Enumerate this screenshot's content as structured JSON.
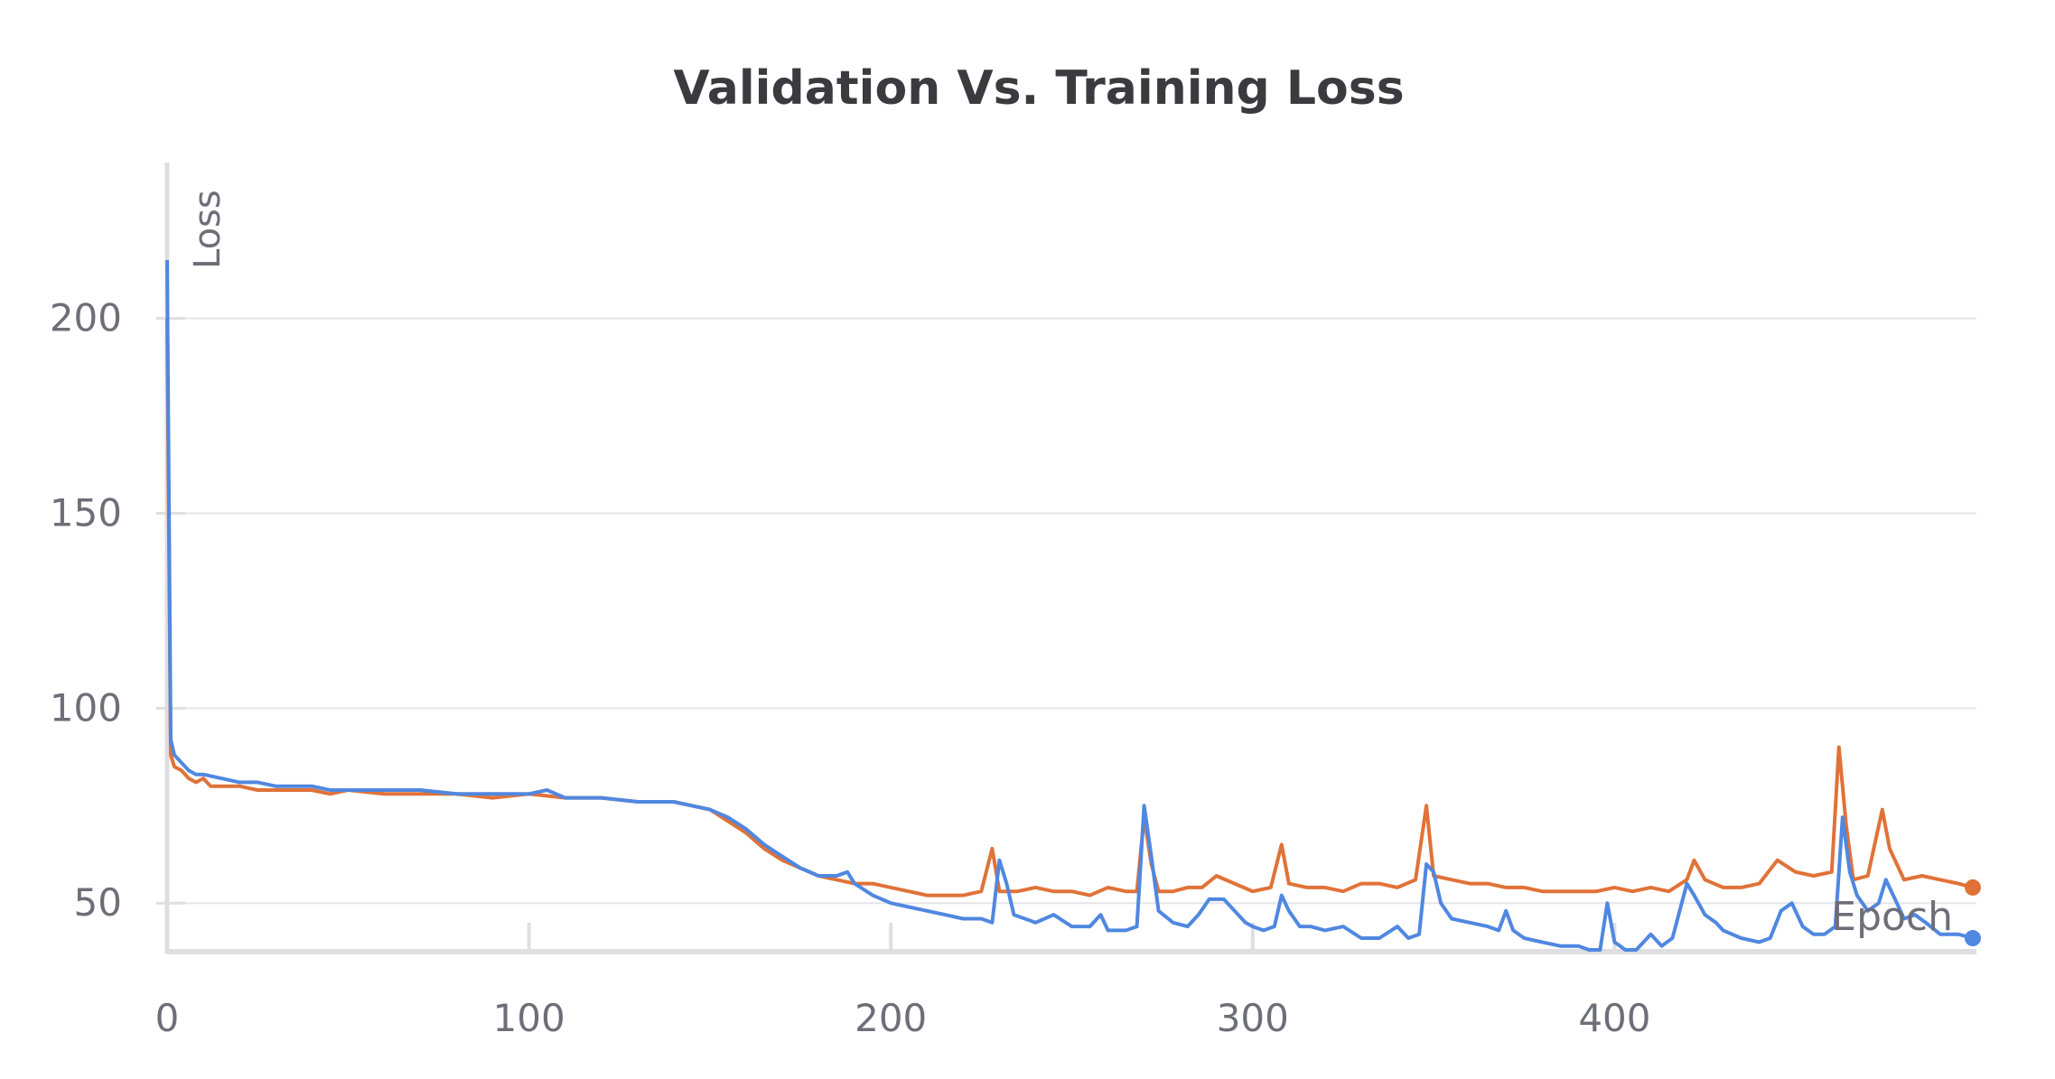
{
  "chart_data": {
    "type": "line",
    "title": "Validation Vs. Training Loss",
    "xlabel": "Epoch",
    "ylabel": "Loss",
    "xlim": [
      0,
      500
    ],
    "ylim": [
      38,
      240
    ],
    "x_ticks": [
      0,
      100,
      200,
      300,
      400
    ],
    "y_ticks": [
      50,
      100,
      150,
      200
    ],
    "grid": true,
    "legend": "none",
    "series": [
      {
        "color": "#e07238",
        "points": [
          [
            0,
            200
          ],
          [
            1,
            88
          ],
          [
            2,
            85
          ],
          [
            4,
            84
          ],
          [
            6,
            82
          ],
          [
            8,
            81
          ],
          [
            10,
            82
          ],
          [
            12,
            80
          ],
          [
            15,
            80
          ],
          [
            20,
            80
          ],
          [
            25,
            79
          ],
          [
            30,
            79
          ],
          [
            35,
            79
          ],
          [
            40,
            79
          ],
          [
            45,
            78
          ],
          [
            50,
            79
          ],
          [
            60,
            78
          ],
          [
            70,
            78
          ],
          [
            80,
            78
          ],
          [
            90,
            77
          ],
          [
            100,
            78
          ],
          [
            110,
            77
          ],
          [
            120,
            77
          ],
          [
            130,
            76
          ],
          [
            140,
            76
          ],
          [
            145,
            75
          ],
          [
            150,
            74
          ],
          [
            155,
            71
          ],
          [
            160,
            68
          ],
          [
            165,
            64
          ],
          [
            170,
            61
          ],
          [
            175,
            59
          ],
          [
            180,
            57
          ],
          [
            185,
            56
          ],
          [
            190,
            55
          ],
          [
            195,
            55
          ],
          [
            200,
            54
          ],
          [
            205,
            53
          ],
          [
            210,
            52
          ],
          [
            215,
            52
          ],
          [
            220,
            52
          ],
          [
            225,
            53
          ],
          [
            228,
            64
          ],
          [
            230,
            53
          ],
          [
            235,
            53
          ],
          [
            240,
            54
          ],
          [
            245,
            53
          ],
          [
            250,
            53
          ],
          [
            255,
            52
          ],
          [
            260,
            54
          ],
          [
            265,
            53
          ],
          [
            268,
            53
          ],
          [
            270,
            72
          ],
          [
            272,
            60
          ],
          [
            274,
            53
          ],
          [
            278,
            53
          ],
          [
            282,
            54
          ],
          [
            286,
            54
          ],
          [
            290,
            57
          ],
          [
            295,
            55
          ],
          [
            300,
            53
          ],
          [
            305,
            54
          ],
          [
            308,
            65
          ],
          [
            310,
            55
          ],
          [
            315,
            54
          ],
          [
            320,
            54
          ],
          [
            325,
            53
          ],
          [
            330,
            55
          ],
          [
            335,
            55
          ],
          [
            340,
            54
          ],
          [
            345,
            56
          ],
          [
            348,
            75
          ],
          [
            350,
            57
          ],
          [
            355,
            56
          ],
          [
            360,
            55
          ],
          [
            365,
            55
          ],
          [
            370,
            54
          ],
          [
            375,
            54
          ],
          [
            380,
            53
          ],
          [
            385,
            53
          ],
          [
            390,
            53
          ],
          [
            395,
            53
          ],
          [
            400,
            54
          ],
          [
            405,
            53
          ],
          [
            410,
            54
          ],
          [
            415,
            53
          ],
          [
            420,
            56
          ],
          [
            422,
            61
          ],
          [
            425,
            56
          ],
          [
            430,
            54
          ],
          [
            435,
            54
          ],
          [
            440,
            55
          ],
          [
            445,
            61
          ],
          [
            450,
            58
          ],
          [
            455,
            57
          ],
          [
            460,
            58
          ],
          [
            462,
            90
          ],
          [
            464,
            70
          ],
          [
            466,
            56
          ],
          [
            470,
            57
          ],
          [
            474,
            74
          ],
          [
            476,
            64
          ],
          [
            480,
            56
          ],
          [
            485,
            57
          ],
          [
            490,
            56
          ],
          [
            495,
            55
          ],
          [
            499,
            54
          ]
        ]
      },
      {
        "color": "#5087e0",
        "points": [
          [
            0,
            215
          ],
          [
            1,
            92
          ],
          [
            2,
            88
          ],
          [
            4,
            86
          ],
          [
            6,
            84
          ],
          [
            8,
            83
          ],
          [
            10,
            83
          ],
          [
            15,
            82
          ],
          [
            20,
            81
          ],
          [
            25,
            81
          ],
          [
            30,
            80
          ],
          [
            35,
            80
          ],
          [
            40,
            80
          ],
          [
            45,
            79
          ],
          [
            50,
            79
          ],
          [
            60,
            79
          ],
          [
            70,
            79
          ],
          [
            80,
            78
          ],
          [
            90,
            78
          ],
          [
            100,
            78
          ],
          [
            105,
            79
          ],
          [
            110,
            77
          ],
          [
            120,
            77
          ],
          [
            130,
            76
          ],
          [
            140,
            76
          ],
          [
            145,
            75
          ],
          [
            150,
            74
          ],
          [
            155,
            72
          ],
          [
            160,
            69
          ],
          [
            165,
            65
          ],
          [
            170,
            62
          ],
          [
            175,
            59
          ],
          [
            180,
            57
          ],
          [
            185,
            57
          ],
          [
            188,
            58
          ],
          [
            190,
            55
          ],
          [
            195,
            52
          ],
          [
            200,
            50
          ],
          [
            205,
            49
          ],
          [
            210,
            48
          ],
          [
            215,
            47
          ],
          [
            220,
            46
          ],
          [
            225,
            46
          ],
          [
            228,
            45
          ],
          [
            230,
            61
          ],
          [
            232,
            55
          ],
          [
            234,
            47
          ],
          [
            240,
            45
          ],
          [
            245,
            47
          ],
          [
            250,
            44
          ],
          [
            255,
            44
          ],
          [
            258,
            47
          ],
          [
            260,
            43
          ],
          [
            265,
            43
          ],
          [
            268,
            44
          ],
          [
            270,
            75
          ],
          [
            272,
            62
          ],
          [
            274,
            48
          ],
          [
            278,
            45
          ],
          [
            282,
            44
          ],
          [
            285,
            47
          ],
          [
            288,
            51
          ],
          [
            292,
            51
          ],
          [
            295,
            48
          ],
          [
            298,
            45
          ],
          [
            300,
            44
          ],
          [
            303,
            43
          ],
          [
            306,
            44
          ],
          [
            308,
            52
          ],
          [
            310,
            48
          ],
          [
            313,
            44
          ],
          [
            316,
            44
          ],
          [
            320,
            43
          ],
          [
            325,
            44
          ],
          [
            330,
            41
          ],
          [
            335,
            41
          ],
          [
            340,
            44
          ],
          [
            343,
            41
          ],
          [
            346,
            42
          ],
          [
            348,
            60
          ],
          [
            350,
            58
          ],
          [
            352,
            50
          ],
          [
            355,
            46
          ],
          [
            360,
            45
          ],
          [
            365,
            44
          ],
          [
            368,
            43
          ],
          [
            370,
            48
          ],
          [
            372,
            43
          ],
          [
            375,
            41
          ],
          [
            380,
            40
          ],
          [
            385,
            39
          ],
          [
            390,
            39
          ],
          [
            393,
            38
          ],
          [
            396,
            38
          ],
          [
            398,
            50
          ],
          [
            400,
            40
          ],
          [
            403,
            38
          ],
          [
            406,
            38
          ],
          [
            410,
            42
          ],
          [
            413,
            39
          ],
          [
            416,
            41
          ],
          [
            418,
            48
          ],
          [
            420,
            55
          ],
          [
            422,
            52
          ],
          [
            425,
            47
          ],
          [
            428,
            45
          ],
          [
            430,
            43
          ],
          [
            435,
            41
          ],
          [
            440,
            40
          ],
          [
            443,
            41
          ],
          [
            446,
            48
          ],
          [
            449,
            50
          ],
          [
            452,
            44
          ],
          [
            455,
            42
          ],
          [
            458,
            42
          ],
          [
            461,
            44
          ],
          [
            463,
            72
          ],
          [
            465,
            58
          ],
          [
            467,
            52
          ],
          [
            470,
            48
          ],
          [
            473,
            50
          ],
          [
            475,
            56
          ],
          [
            478,
            50
          ],
          [
            480,
            46
          ],
          [
            483,
            47
          ],
          [
            486,
            45
          ],
          [
            490,
            42
          ],
          [
            495,
            42
          ],
          [
            499,
            41
          ]
        ]
      }
    ]
  }
}
